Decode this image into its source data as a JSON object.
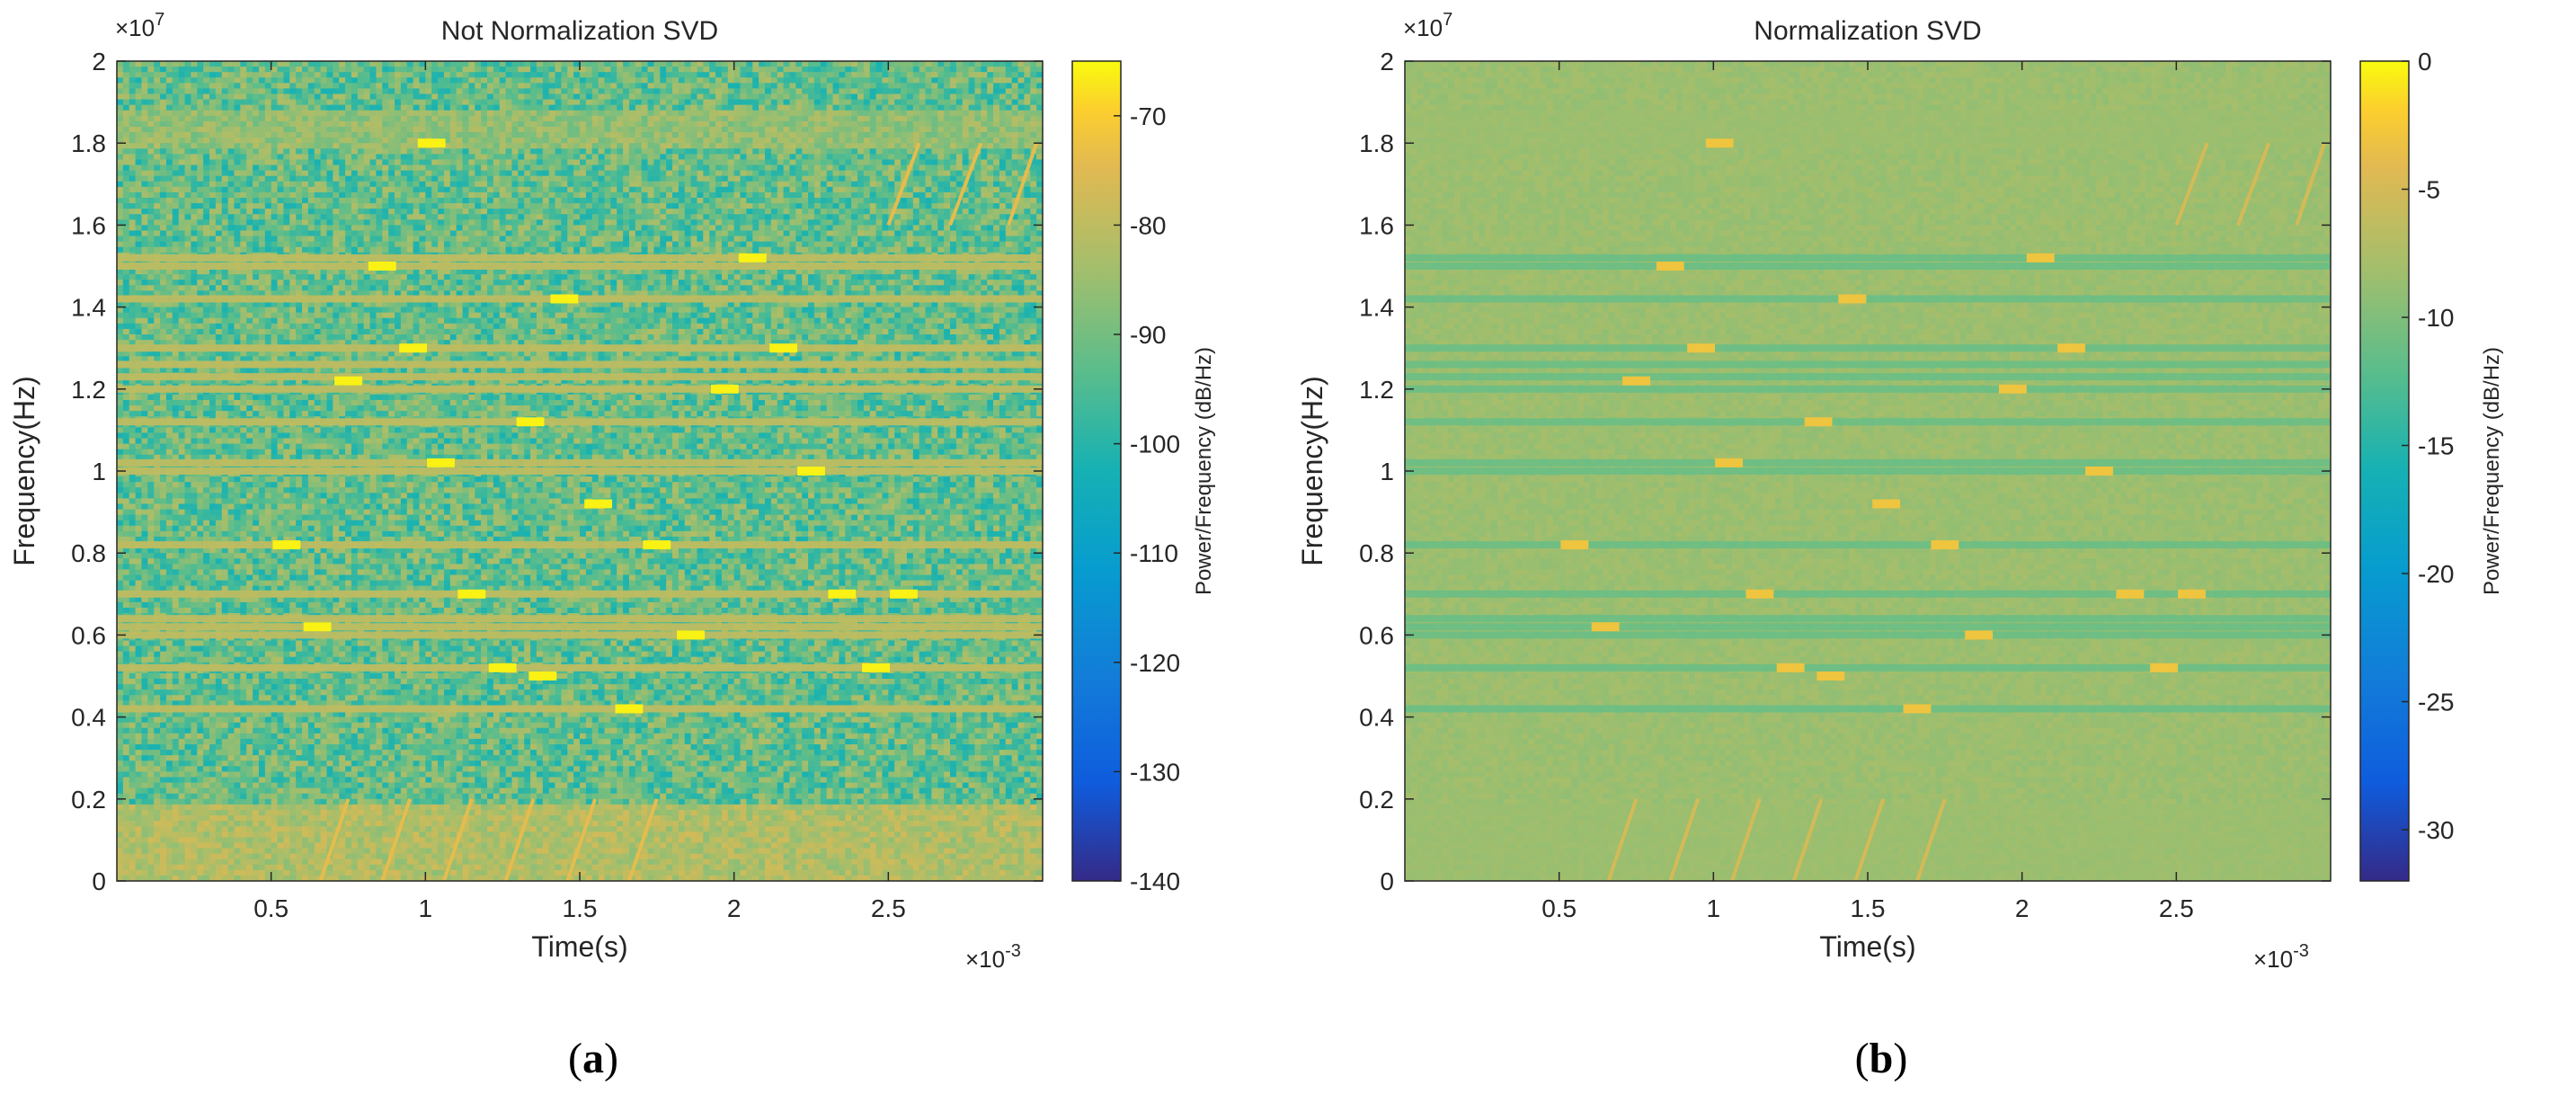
{
  "chart_data": [
    {
      "type": "heatmap",
      "panel": "a",
      "subtitle_letter": "a",
      "title": "Not Normalization SVD",
      "xlabel": "Time(s)",
      "ylabel": "Frequency(Hz)",
      "x_exponent": "×10",
      "x_exponent_power": "-3",
      "y_exponent": "×10",
      "y_exponent_power": "7",
      "xlim": [
        0,
        3.0
      ],
      "ylim": [
        0,
        2.0
      ],
      "xticks": [
        0.5,
        1.0,
        1.5,
        2.0,
        2.5
      ],
      "xtick_labels": [
        "0.5",
        "1",
        "1.5",
        "2",
        "2.5"
      ],
      "yticks": [
        0,
        0.2,
        0.4,
        0.6,
        0.8,
        1.0,
        1.2,
        1.4,
        1.6,
        1.8,
        2.0
      ],
      "ytick_labels": [
        "0",
        "0.2",
        "0.4",
        "0.6",
        "0.8",
        "1",
        "1.2",
        "1.4",
        "1.6",
        "1.8",
        "2"
      ],
      "colorbar_label": "Power/Frequency (dB/Hz)",
      "colorbar_range": [
        -140,
        -65
      ],
      "colorbar_ticks": [
        -140,
        -130,
        -120,
        -110,
        -100,
        -90,
        -80,
        -70
      ],
      "colorbar_tick_labels": [
        "-140",
        "-130",
        "-120",
        "-110",
        "-100",
        "-90",
        "-80",
        "-70"
      ],
      "background_level": -92,
      "noise_level": 10,
      "low_band": {
        "f_max": 0.19,
        "level": -82
      },
      "high_band": {
        "f_min": 1.79,
        "f_max": 1.88,
        "level": -86
      },
      "narrowband_lines_freq": [
        0.42,
        0.52,
        0.6,
        0.62,
        0.64,
        0.7,
        0.82,
        1.0,
        1.02,
        1.12,
        1.2,
        1.23,
        1.26,
        1.3,
        1.42,
        1.5,
        1.52
      ],
      "narrowband_level": -80,
      "pulses": [
        {
          "t": 1.02,
          "f": 1.8
        },
        {
          "t": 0.86,
          "f": 1.5
        },
        {
          "t": 2.06,
          "f": 1.52
        },
        {
          "t": 1.45,
          "f": 1.42
        },
        {
          "t": 0.96,
          "f": 1.3
        },
        {
          "t": 2.16,
          "f": 1.3
        },
        {
          "t": 0.75,
          "f": 1.22
        },
        {
          "t": 1.97,
          "f": 1.2
        },
        {
          "t": 1.34,
          "f": 1.12
        },
        {
          "t": 1.05,
          "f": 1.02
        },
        {
          "t": 2.25,
          "f": 1.0
        },
        {
          "t": 1.56,
          "f": 0.92
        },
        {
          "t": 0.55,
          "f": 0.82
        },
        {
          "t": 1.75,
          "f": 0.82
        },
        {
          "t": 1.15,
          "f": 0.7
        },
        {
          "t": 2.35,
          "f": 0.7
        },
        {
          "t": 2.55,
          "f": 0.7
        },
        {
          "t": 0.65,
          "f": 0.62
        },
        {
          "t": 1.86,
          "f": 0.6
        },
        {
          "t": 1.25,
          "f": 0.52
        },
        {
          "t": 2.46,
          "f": 0.52
        },
        {
          "t": 1.38,
          "f": 0.5
        },
        {
          "t": 1.66,
          "f": 0.42
        }
      ],
      "pulse_width": 0.09,
      "pulse_level": -66,
      "chirps": [
        {
          "t0": 0.66,
          "f0": 0.0,
          "t1": 0.75,
          "f1": 0.2
        },
        {
          "t0": 0.86,
          "f0": 0.0,
          "t1": 0.95,
          "f1": 0.2
        },
        {
          "t0": 1.06,
          "f0": 0.0,
          "t1": 1.15,
          "f1": 0.2
        },
        {
          "t0": 1.26,
          "f0": 0.0,
          "t1": 1.35,
          "f1": 0.2
        },
        {
          "t0": 1.46,
          "f0": 0.0,
          "t1": 1.55,
          "f1": 0.2
        },
        {
          "t0": 1.66,
          "f0": 0.0,
          "t1": 1.75,
          "f1": 0.2
        },
        {
          "t0": 2.5,
          "f0": 1.6,
          "t1": 2.6,
          "f1": 1.8
        },
        {
          "t0": 2.7,
          "f0": 1.6,
          "t1": 2.8,
          "f1": 1.8
        },
        {
          "t0": 2.89,
          "f0": 1.6,
          "t1": 2.98,
          "f1": 1.8
        }
      ],
      "chirp_level": -74
    },
    {
      "type": "heatmap",
      "panel": "b",
      "subtitle_letter": "b",
      "title": "Normalization SVD",
      "xlabel": "Time(s)",
      "ylabel": "Frequency(Hz)",
      "x_exponent": "×10",
      "x_exponent_power": "-3",
      "y_exponent": "×10",
      "y_exponent_power": "7",
      "xlim": [
        0,
        3.0
      ],
      "ylim": [
        0,
        2.0
      ],
      "xticks": [
        0.5,
        1.0,
        1.5,
        2.0,
        2.5
      ],
      "xtick_labels": [
        "0.5",
        "1",
        "1.5",
        "2",
        "2.5"
      ],
      "yticks": [
        0,
        0.2,
        0.4,
        0.6,
        0.8,
        1.0,
        1.2,
        1.4,
        1.6,
        1.8,
        2.0
      ],
      "ytick_labels": [
        "0",
        "0.2",
        "0.4",
        "0.6",
        "0.8",
        "1",
        "1.2",
        "1.4",
        "1.6",
        "1.8",
        "2"
      ],
      "colorbar_label": "Power/Frequency (dB/Hz)",
      "colorbar_range": [
        -32,
        0
      ],
      "colorbar_ticks": [
        -30,
        -25,
        -20,
        -15,
        -10,
        -5,
        0
      ],
      "colorbar_tick_labels": [
        "-30",
        "-25",
        "-20",
        "-15",
        "-10",
        "-5",
        "0"
      ],
      "background_level": -8.5,
      "noise_level": 0.6,
      "low_band": {
        "f_max": 0.19,
        "level": -8.5
      },
      "high_band": {
        "f_min": 1.79,
        "f_max": 1.88,
        "level": -8.5
      },
      "narrowband_lines_freq": [
        0.42,
        0.52,
        0.6,
        0.62,
        0.64,
        0.7,
        0.82,
        1.0,
        1.02,
        1.12,
        1.2,
        1.23,
        1.26,
        1.3,
        1.42,
        1.5,
        1.52
      ],
      "narrowband_level": -12,
      "pulses": [
        {
          "t": 1.02,
          "f": 1.8
        },
        {
          "t": 0.86,
          "f": 1.5
        },
        {
          "t": 2.06,
          "f": 1.52
        },
        {
          "t": 1.45,
          "f": 1.42
        },
        {
          "t": 0.96,
          "f": 1.3
        },
        {
          "t": 2.16,
          "f": 1.3
        },
        {
          "t": 0.75,
          "f": 1.22
        },
        {
          "t": 1.97,
          "f": 1.2
        },
        {
          "t": 1.34,
          "f": 1.12
        },
        {
          "t": 1.05,
          "f": 1.02
        },
        {
          "t": 2.25,
          "f": 1.0
        },
        {
          "t": 1.56,
          "f": 0.92
        },
        {
          "t": 0.55,
          "f": 0.82
        },
        {
          "t": 1.75,
          "f": 0.82
        },
        {
          "t": 1.15,
          "f": 0.7
        },
        {
          "t": 2.35,
          "f": 0.7
        },
        {
          "t": 2.55,
          "f": 0.7
        },
        {
          "t": 0.65,
          "f": 0.62
        },
        {
          "t": 1.86,
          "f": 0.6
        },
        {
          "t": 1.25,
          "f": 0.52
        },
        {
          "t": 2.46,
          "f": 0.52
        },
        {
          "t": 1.38,
          "f": 0.5
        },
        {
          "t": 1.66,
          "f": 0.42
        }
      ],
      "pulse_width": 0.09,
      "pulse_level": -3,
      "chirps": [
        {
          "t0": 0.66,
          "f0": 0.0,
          "t1": 0.75,
          "f1": 0.2
        },
        {
          "t0": 0.86,
          "f0": 0.0,
          "t1": 0.95,
          "f1": 0.2
        },
        {
          "t0": 1.06,
          "f0": 0.0,
          "t1": 1.15,
          "f1": 0.2
        },
        {
          "t0": 1.26,
          "f0": 0.0,
          "t1": 1.35,
          "f1": 0.2
        },
        {
          "t0": 1.46,
          "f0": 0.0,
          "t1": 1.55,
          "f1": 0.2
        },
        {
          "t0": 1.66,
          "f0": 0.0,
          "t1": 1.75,
          "f1": 0.2
        },
        {
          "t0": 2.5,
          "f0": 1.6,
          "t1": 2.6,
          "f1": 1.8
        },
        {
          "t0": 2.7,
          "f0": 1.6,
          "t1": 2.8,
          "f1": 1.8
        },
        {
          "t0": 2.89,
          "f0": 1.6,
          "t1": 2.98,
          "f1": 1.8
        }
      ],
      "chirp_level": -5
    }
  ]
}
